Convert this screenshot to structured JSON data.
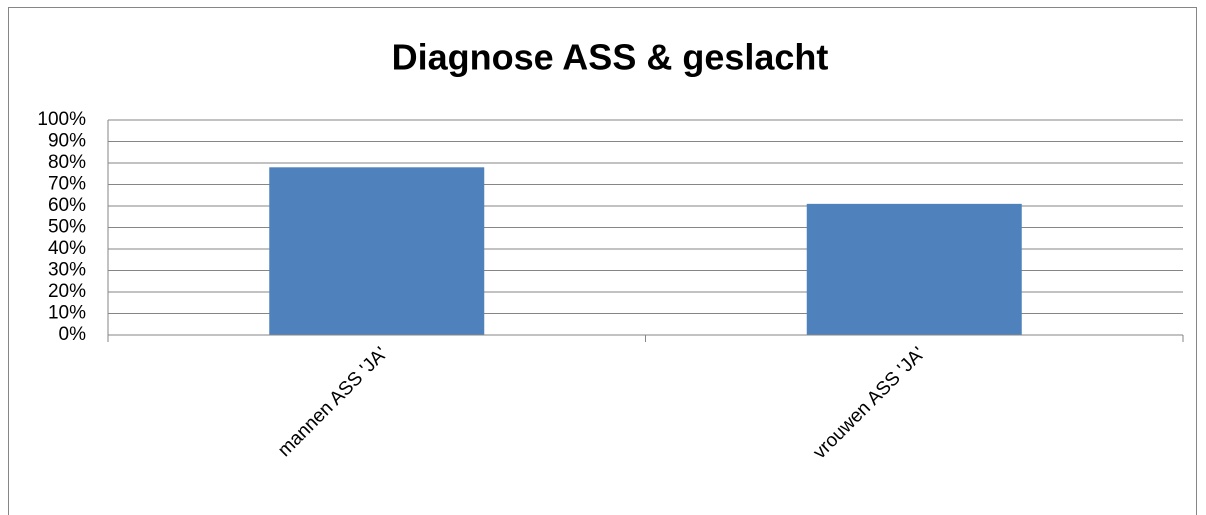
{
  "chart_data": {
    "type": "bar",
    "title": "Diagnose ASS & geslacht",
    "categories": [
      "mannen ASS 'JA'",
      "vrouwen ASS 'JA'"
    ],
    "values": [
      78,
      61
    ],
    "color": "#4f81bd",
    "ylim": [
      0,
      100
    ],
    "yticks": [
      {
        "value": 0,
        "label": "0%"
      },
      {
        "value": 10,
        "label": "10%"
      },
      {
        "value": 20,
        "label": "20%"
      },
      {
        "value": 30,
        "label": "30%"
      },
      {
        "value": 40,
        "label": "40%"
      },
      {
        "value": 50,
        "label": "50%"
      },
      {
        "value": 60,
        "label": "60%"
      },
      {
        "value": 70,
        "label": "70%"
      },
      {
        "value": 80,
        "label": "80%"
      },
      {
        "value": 90,
        "label": "90%"
      },
      {
        "value": 100,
        "label": "100%"
      }
    ],
    "grid": true
  }
}
